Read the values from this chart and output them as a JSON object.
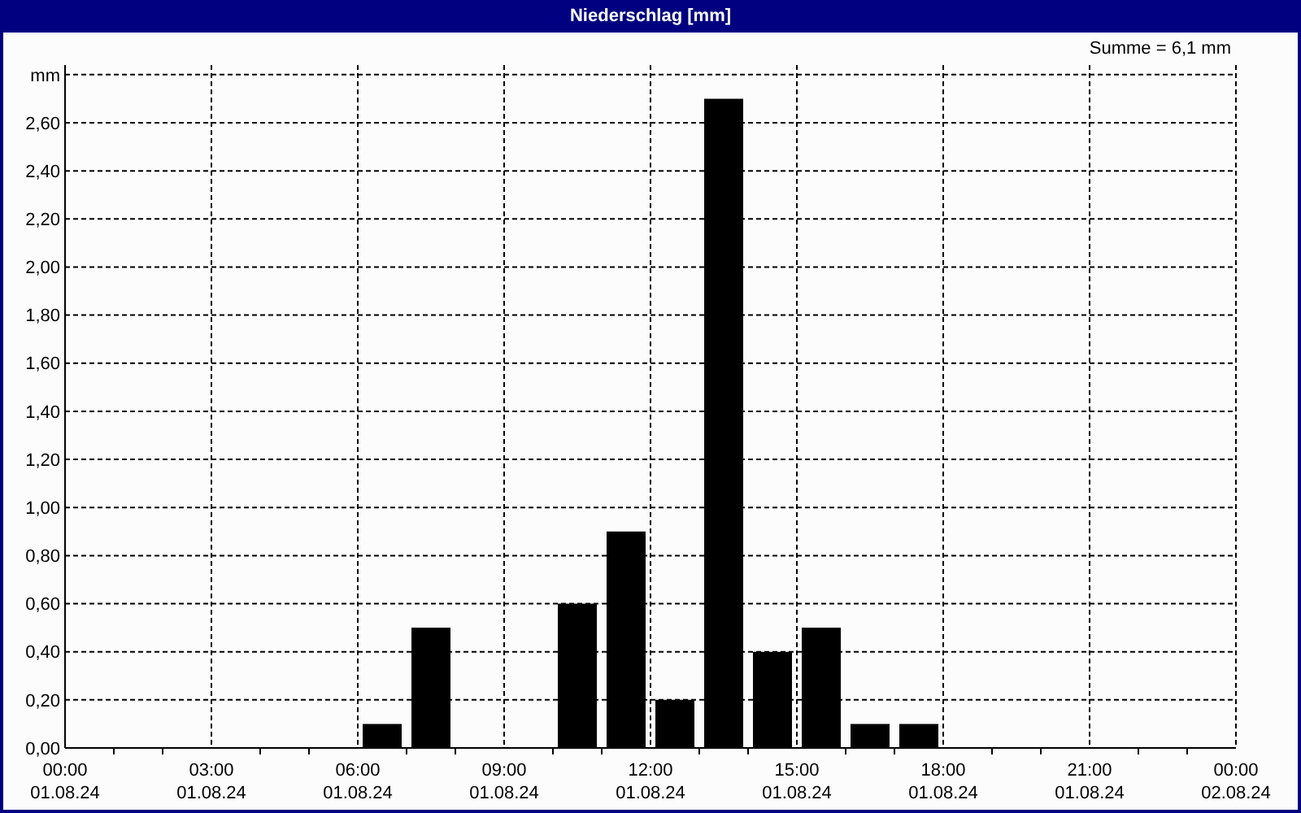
{
  "chart_data": {
    "type": "bar",
    "title": "Niederschlag [mm]",
    "annotations": [
      "Summe = 6,1 mm"
    ],
    "x": [
      "--08-01T06:30",
      "--08-01T07:30",
      "--08-01T10:30",
      "--08-01T11:30",
      "--08-01T12:30",
      "--08-01T13:30",
      "--08-01T14:30",
      "--08-01T15:30",
      "--08-01T16:30",
      "--08-01T17:30"
    ],
    "values": [
      0.1,
      0.5,
      0.6,
      0.9,
      0.2,
      2.7,
      0.4,
      0.5,
      0.1,
      0.1
    ],
    "color": "#000000",
    "xlim": [
      "--08-01T00:00",
      "--08-02T00:00"
    ],
    "xticks": [
      {
        "value": "--08-01T00:00",
        "label": "00:00\n01.08.24"
      },
      {
        "value": "--08-01T01:00",
        "label": null
      },
      {
        "value": "--08-01T02:00",
        "label": null
      },
      {
        "value": "--08-01T03:00",
        "label": "03:00\n01.08.24"
      },
      {
        "value": "--08-01T04:00",
        "label": null
      },
      {
        "value": "--08-01T05:00",
        "label": null
      },
      {
        "value": "--08-01T06:00",
        "label": "06:00\n01.08.24"
      },
      {
        "value": "--08-01T07:00",
        "label": null
      },
      {
        "value": "--08-01T08:00",
        "label": null
      },
      {
        "value": "--08-01T09:00",
        "label": "09:00\n01.08.24"
      },
      {
        "value": "--08-01T10:00",
        "label": null
      },
      {
        "value": "--08-01T11:00",
        "label": null
      },
      {
        "value": "--08-01T12:00",
        "label": "12:00\n01.08.24"
      },
      {
        "value": "--08-01T13:00",
        "label": null
      },
      {
        "value": "--08-01T14:00",
        "label": null
      },
      {
        "value": "--08-01T15:00",
        "label": "15:00\n01.08.24"
      },
      {
        "value": "--08-01T16:00",
        "label": null
      },
      {
        "value": "--08-01T17:00",
        "label": null
      },
      {
        "value": "--08-01T18:00",
        "label": "18:00\n01.08.24"
      },
      {
        "value": "--08-01T19:00",
        "label": null
      },
      {
        "value": "--08-01T20:00",
        "label": null
      },
      {
        "value": "--08-01T21:00",
        "label": "21:00\n01.08.24"
      },
      {
        "value": "--08-01T22:00",
        "label": null
      },
      {
        "value": "--08-01T23:00",
        "label": null
      },
      {
        "value": "--08-02T00:00",
        "label": "00:00\n02.08.24"
      }
    ],
    "ylim": [
      0,
      2.84
    ],
    "yticks": [
      {
        "value": 0,
        "label": "0,00"
      },
      {
        "value": 0.2,
        "label": "0,20"
      },
      {
        "value": 0.4,
        "label": "0,40"
      },
      {
        "value": 0.6,
        "label": "0,60"
      },
      {
        "value": 0.8,
        "label": "0,80"
      },
      {
        "value": 1,
        "label": "1,00"
      },
      {
        "value": 1.2,
        "label": "1,20"
      },
      {
        "value": 1.4,
        "label": "1,40"
      },
      {
        "value": 1.6,
        "label": "1,60"
      },
      {
        "value": 1.8,
        "label": "1,80"
      },
      {
        "value": 2,
        "label": "2,00"
      },
      {
        "value": 2.2,
        "label": "2,20"
      },
      {
        "value": 2.4,
        "label": "2,40"
      },
      {
        "value": 2.6,
        "label": "2,60"
      },
      {
        "value": 2.8,
        "label": "mm"
      }
    ],
    "grid": true
  }
}
